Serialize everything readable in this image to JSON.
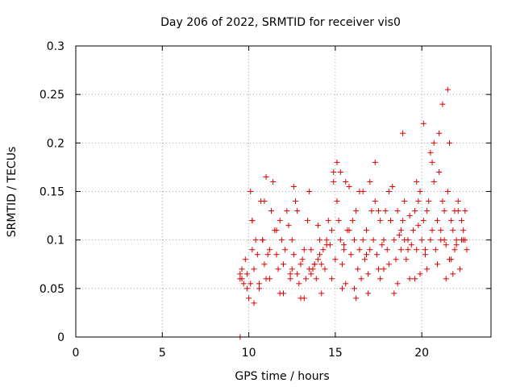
{
  "chart_data": {
    "type": "scatter",
    "title": "Day 206 of 2022, SRMTID for receiver vis0",
    "xlabel": "GPS time / hours",
    "ylabel": "SRMTID / TECUs",
    "xlim": [
      0,
      24
    ],
    "ylim": [
      0,
      0.3
    ],
    "x_ticks": [
      "0",
      "5",
      "10",
      "15",
      "20"
    ],
    "y_ticks": [
      "0",
      "0.05",
      "0.1",
      "0.15",
      "0.2",
      "0.25",
      "0.3"
    ],
    "grid": true,
    "marker": "+",
    "color": "#e00000",
    "series": [
      {
        "name": "SRMTID",
        "x": [
          9.5,
          9.5,
          9.5,
          9.6,
          9.7,
          9.8,
          9.9,
          9.9,
          10.0,
          10.1,
          10.2,
          10.2,
          10.3,
          10.4,
          10.5,
          10.6,
          10.7,
          10.8,
          10.9,
          11.0,
          11.1,
          11.2,
          11.3,
          11.4,
          11.5,
          11.6,
          11.7,
          11.8,
          11.9,
          12.0,
          12.1,
          12.2,
          12.3,
          12.4,
          12.5,
          12.6,
          12.7,
          12.8,
          12.9,
          13.0,
          13.1,
          13.2,
          13.3,
          13.4,
          13.5,
          13.6,
          13.7,
          13.8,
          13.9,
          14.0,
          14.1,
          14.2,
          14.3,
          14.4,
          14.5,
          14.6,
          14.7,
          14.8,
          14.9,
          15.0,
          15.1,
          15.2,
          15.3,
          15.4,
          15.5,
          15.6,
          15.7,
          15.8,
          15.9,
          16.0,
          16.1,
          16.2,
          16.3,
          16.4,
          16.5,
          16.6,
          16.7,
          16.8,
          16.9,
          17.0,
          17.1,
          17.2,
          17.3,
          17.4,
          17.5,
          17.6,
          17.7,
          17.8,
          17.9,
          18.0,
          18.1,
          18.2,
          18.3,
          18.4,
          18.5,
          18.6,
          18.7,
          18.8,
          18.9,
          19.0,
          19.1,
          19.2,
          19.3,
          19.4,
          19.5,
          19.6,
          19.7,
          19.8,
          19.9,
          20.0,
          20.1,
          20.2,
          20.3,
          20.4,
          20.5,
          20.6,
          20.7,
          20.8,
          20.9,
          21.0,
          21.1,
          21.2,
          21.3,
          21.4,
          21.5,
          21.6,
          21.7,
          21.8,
          21.9,
          22.0,
          22.1,
          22.2,
          22.3,
          22.4,
          22.5,
          22.6,
          10.1,
          10.6,
          11.2,
          11.8,
          12.4,
          12.6,
          13.2,
          13.5,
          14.2,
          14.8,
          15.1,
          15.3,
          15.6,
          16.1,
          16.4,
          16.9,
          17.3,
          17.6,
          18.1,
          18.6,
          18.9,
          19.3,
          19.7,
          19.9,
          20.1,
          20.3,
          20.7,
          20.9,
          21.2,
          21.4,
          21.5,
          21.6,
          21.8,
          22.1,
          22.5,
          10.3,
          11.0,
          12.0,
          13.0,
          13.8,
          14.5,
          15.4,
          16.2,
          17.0,
          17.8,
          18.4,
          19.2,
          19.6,
          20.5,
          21.0,
          21.7,
          22.3,
          10.2,
          10.9,
          11.6,
          12.8,
          13.6,
          14.1,
          14.9,
          15.8,
          16.6,
          17.5,
          18.2,
          19.0,
          19.8,
          20.6,
          21.1,
          21.9,
          22.4,
          9.6,
          10.8,
          12.5,
          14.0,
          15.5,
          16.8,
          18.8,
          20.2,
          21.3,
          22.0
        ],
        "y": [
          0.0,
          0.065,
          0.06,
          0.07,
          0.055,
          0.08,
          0.05,
          0.065,
          0.04,
          0.15,
          0.12,
          0.09,
          0.07,
          0.1,
          0.085,
          0.055,
          0.14,
          0.1,
          0.075,
          0.06,
          0.085,
          0.09,
          0.13,
          0.16,
          0.11,
          0.085,
          0.07,
          0.12,
          0.1,
          0.075,
          0.09,
          0.13,
          0.115,
          0.06,
          0.1,
          0.085,
          0.14,
          0.065,
          0.055,
          0.075,
          0.08,
          0.09,
          0.06,
          0.12,
          0.07,
          0.065,
          0.07,
          0.075,
          0.06,
          0.08,
          0.085,
          0.075,
          0.09,
          0.07,
          0.1,
          0.12,
          0.095,
          0.11,
          0.16,
          0.08,
          0.14,
          0.12,
          0.1,
          0.075,
          0.09,
          0.055,
          0.11,
          0.155,
          0.085,
          0.12,
          0.1,
          0.13,
          0.07,
          0.09,
          0.06,
          0.1,
          0.08,
          0.11,
          0.065,
          0.09,
          0.13,
          0.1,
          0.14,
          0.085,
          0.07,
          0.12,
          0.095,
          0.1,
          0.13,
          0.09,
          0.075,
          0.12,
          0.155,
          0.1,
          0.08,
          0.13,
          0.105,
          0.09,
          0.12,
          0.14,
          0.08,
          0.1,
          0.125,
          0.095,
          0.11,
          0.13,
          0.09,
          0.115,
          0.15,
          0.1,
          0.12,
          0.085,
          0.13,
          0.14,
          0.1,
          0.11,
          0.16,
          0.09,
          0.12,
          0.17,
          0.1,
          0.14,
          0.13,
          0.095,
          0.15,
          0.08,
          0.12,
          0.11,
          0.09,
          0.1,
          0.13,
          0.07,
          0.12,
          0.11,
          0.1,
          0.09,
          0.055,
          0.05,
          0.06,
          0.045,
          0.065,
          0.155,
          0.04,
          0.15,
          0.045,
          0.06,
          0.18,
          0.17,
          0.16,
          0.05,
          0.15,
          0.045,
          0.18,
          0.06,
          0.15,
          0.055,
          0.21,
          0.06,
          0.16,
          0.065,
          0.22,
          0.07,
          0.2,
          0.075,
          0.24,
          0.06,
          0.255,
          0.2,
          0.065,
          0.14,
          0.13,
          0.035,
          0.165,
          0.045,
          0.04,
          0.075,
          0.095,
          0.05,
          0.04,
          0.16,
          0.07,
          0.045,
          0.09,
          0.06,
          0.19,
          0.21,
          0.08,
          0.1,
          0.12,
          0.14,
          0.11,
          0.13,
          0.09,
          0.1,
          0.17,
          0.11,
          0.15,
          0.13,
          0.12,
          0.1,
          0.14,
          0.18,
          0.11,
          0.13,
          0.1,
          0.06,
          0.1,
          0.07,
          0.115,
          0.095,
          0.085,
          0.11,
          0.09,
          0.1,
          0.095
        ]
      }
    ]
  }
}
